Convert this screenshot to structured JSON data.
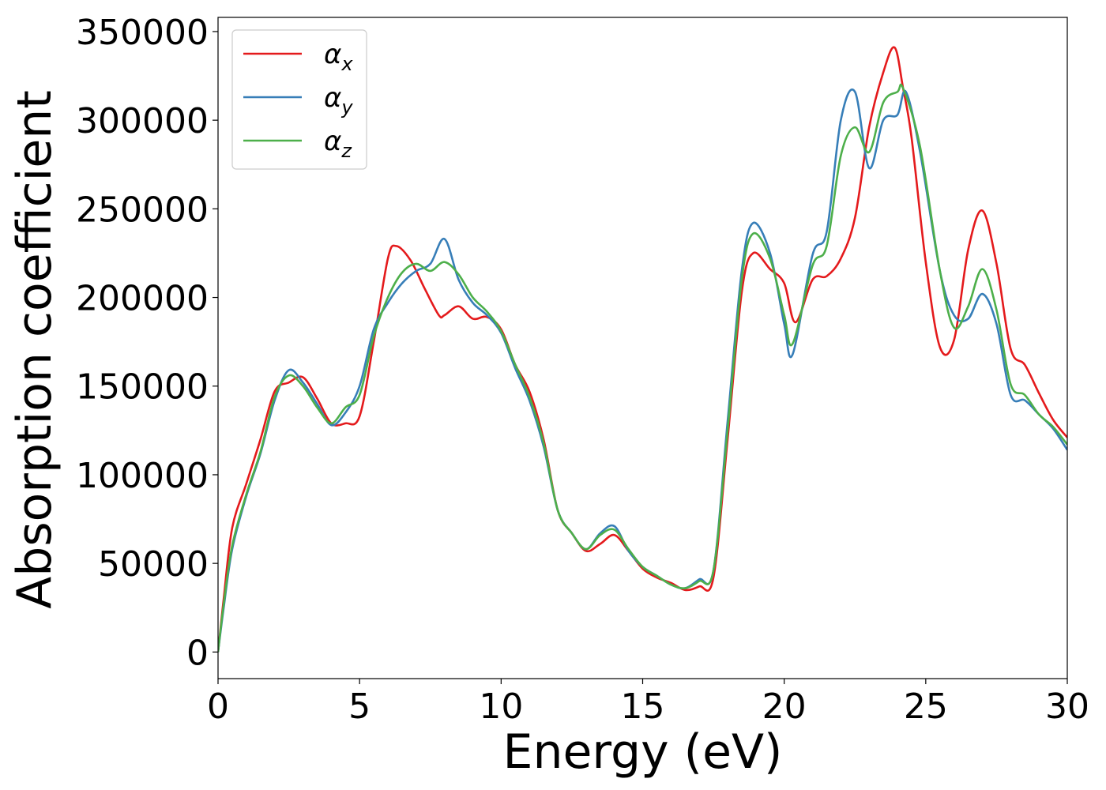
{
  "chart_data": {
    "type": "line",
    "title": "",
    "xlabel": "Energy (eV)",
    "ylabel": "Absorption coefficient",
    "xlim": [
      0,
      30
    ],
    "ylim": [
      -15000,
      358000
    ],
    "xticks": [
      0,
      5,
      10,
      15,
      20,
      25,
      30
    ],
    "xtick_labels": [
      "0",
      "5",
      "10",
      "15",
      "20",
      "25",
      "30"
    ],
    "yticks": [
      0,
      50000,
      100000,
      150000,
      200000,
      250000,
      300000,
      350000
    ],
    "ytick_labels": [
      "0",
      "50000",
      "100000",
      "150000",
      "200000",
      "250000",
      "300000",
      "350000"
    ],
    "grid": false,
    "legend_position": "top-left",
    "series": [
      {
        "name": "α_x",
        "label_base": "α",
        "label_sub": "x",
        "color": "#e41a1c",
        "x": [
          0,
          0.2,
          0.5,
          1.0,
          1.5,
          2.0,
          2.5,
          3.0,
          3.5,
          4.0,
          4.5,
          5.0,
          5.5,
          6.0,
          6.3,
          6.8,
          7.3,
          7.8,
          8.0,
          8.5,
          9.0,
          9.5,
          10.0,
          10.5,
          11.0,
          11.5,
          12.0,
          12.5,
          13.0,
          13.5,
          14.0,
          14.5,
          15.0,
          15.5,
          16.0,
          16.5,
          17.0,
          17.5,
          18.0,
          18.5,
          18.9,
          19.5,
          20.0,
          20.4,
          21.0,
          21.5,
          22.0,
          22.5,
          23.0,
          23.5,
          23.9,
          24.2,
          24.5,
          25.0,
          25.5,
          26.0,
          26.5,
          27.0,
          27.5,
          28.0,
          28.5,
          29.0,
          29.5,
          30.0
        ],
        "y": [
          0,
          30000,
          70000,
          95000,
          120000,
          147000,
          152000,
          155000,
          143000,
          129000,
          129000,
          133000,
          175000,
          222000,
          229000,
          221000,
          205000,
          190000,
          190000,
          195000,
          188000,
          189000,
          182000,
          162000,
          147000,
          120000,
          80000,
          67000,
          57000,
          61000,
          66000,
          57000,
          47000,
          42000,
          39000,
          35000,
          37000,
          42000,
          120000,
          203000,
          225000,
          216000,
          208000,
          186000,
          210000,
          212000,
          222000,
          245000,
          296000,
          327000,
          341000,
          318000,
          290000,
          220000,
          172000,
          176000,
          227000,
          249000,
          219000,
          171000,
          162000,
          146000,
          131000,
          121000
        ]
      },
      {
        "name": "α_y",
        "label_base": "α",
        "label_sub": "y",
        "color": "#377eb8",
        "x": [
          0,
          0.2,
          0.5,
          1.0,
          1.5,
          2.0,
          2.5,
          3.0,
          3.5,
          4.0,
          4.5,
          5.0,
          5.5,
          6.0,
          6.5,
          7.0,
          7.5,
          8.0,
          8.5,
          9.0,
          9.5,
          10.0,
          10.5,
          11.0,
          11.5,
          12.0,
          12.5,
          13.0,
          13.5,
          14.0,
          14.5,
          15.0,
          15.5,
          16.0,
          16.5,
          17.0,
          17.5,
          18.0,
          18.5,
          18.9,
          19.5,
          20.0,
          20.3,
          21.0,
          21.5,
          22.0,
          22.5,
          23.0,
          23.5,
          24.0,
          24.3,
          24.8,
          25.5,
          26.0,
          26.5,
          27.0,
          27.5,
          28.0,
          28.5,
          29.0,
          29.5,
          30.0
        ],
        "y": [
          0,
          25000,
          58000,
          88000,
          112000,
          142000,
          159000,
          152000,
          140000,
          128000,
          135000,
          150000,
          182000,
          197000,
          208000,
          215000,
          219000,
          233000,
          210000,
          197000,
          190000,
          180000,
          160000,
          142000,
          116000,
          80000,
          67000,
          58000,
          67000,
          71000,
          57000,
          48000,
          43000,
          38000,
          36000,
          41000,
          46000,
          130000,
          215000,
          242000,
          225000,
          185000,
          168000,
          224000,
          237000,
          300000,
          316000,
          273000,
          300000,
          303000,
          316000,
          282000,
          215000,
          190000,
          188000,
          202000,
          185000,
          145000,
          142000,
          134000,
          126000,
          114000
        ]
      },
      {
        "name": "α_z",
        "label_base": "α",
        "label_sub": "z",
        "color": "#4daf4a",
        "x": [
          0,
          0.2,
          0.5,
          1.0,
          1.5,
          2.0,
          2.5,
          3.0,
          3.5,
          4.0,
          4.5,
          5.0,
          5.5,
          6.0,
          6.5,
          7.0,
          7.5,
          8.0,
          8.5,
          9.0,
          9.5,
          10.0,
          10.5,
          11.0,
          11.5,
          12.0,
          12.5,
          13.0,
          13.5,
          14.0,
          14.5,
          15.0,
          15.5,
          16.0,
          16.5,
          17.0,
          17.5,
          18.0,
          18.5,
          18.9,
          19.5,
          20.0,
          20.3,
          21.0,
          21.5,
          22.0,
          22.5,
          23.0,
          23.5,
          24.0,
          24.2,
          24.8,
          25.5,
          26.0,
          26.5,
          27.0,
          27.5,
          28.0,
          28.5,
          29.0,
          29.5,
          30.0
        ],
        "y": [
          0,
          27000,
          60000,
          89000,
          113000,
          144000,
          156000,
          150000,
          138000,
          129000,
          138000,
          145000,
          178000,
          200000,
          214000,
          219000,
          215000,
          220000,
          213000,
          200000,
          192000,
          181000,
          162000,
          144000,
          118000,
          80000,
          67000,
          58000,
          66000,
          69000,
          58000,
          48000,
          43000,
          38000,
          36000,
          40000,
          46000,
          125000,
          210000,
          236000,
          222000,
          190000,
          174000,
          218000,
          229000,
          280000,
          296000,
          282000,
          310000,
          316000,
          318000,
          285000,
          215000,
          183000,
          195000,
          216000,
          193000,
          151000,
          145000,
          134000,
          127000,
          117000
        ]
      }
    ]
  }
}
